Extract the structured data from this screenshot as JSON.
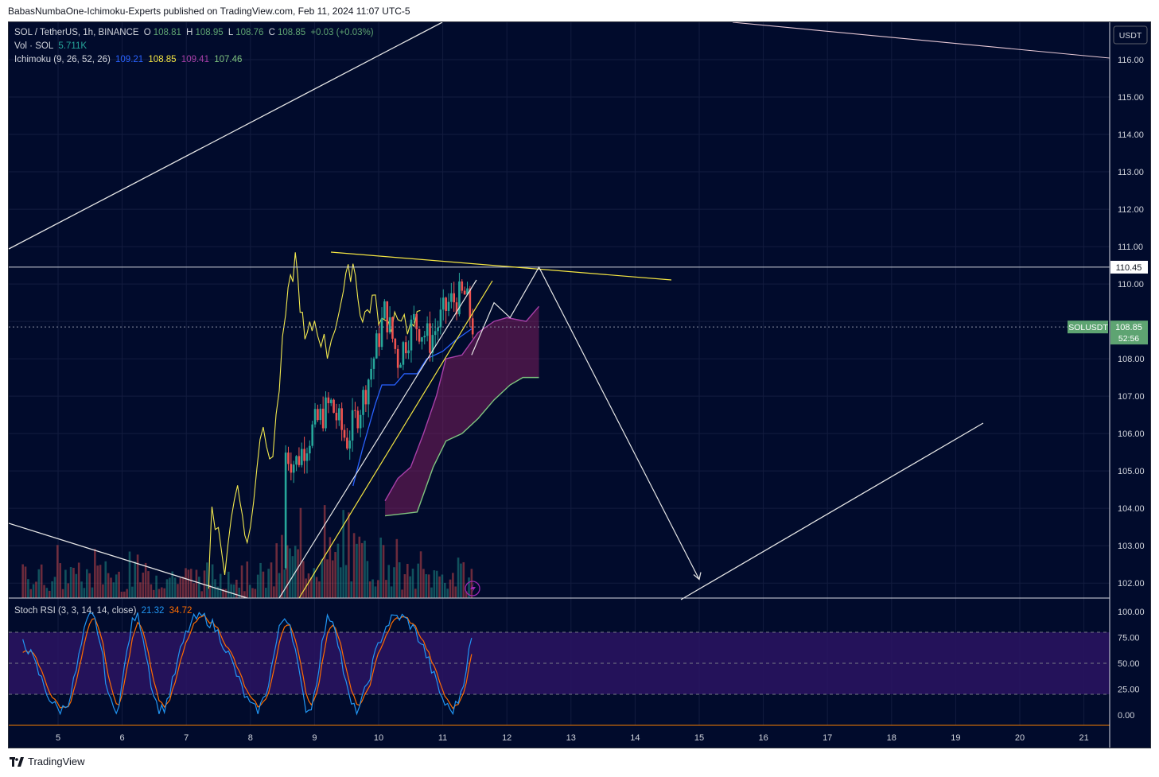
{
  "header": {
    "published": "BabasNumbaOne-Ichimoku-Experts published on TradingView.com, Feb 11, 2024 11:07 UTC-5"
  },
  "legend": {
    "symbol": "SOL / TetherUS, 1h, BINANCE",
    "o_label": "O",
    "o_value": "108.81",
    "h_label": "H",
    "h_value": "108.95",
    "l_label": "L",
    "l_value": "108.76",
    "c_label": "C",
    "c_value": "108.85",
    "change": "+0.03 (+0.03%)",
    "vol_label": "Vol · SOL",
    "vol_value": "5.711K",
    "ichimoku_label": "Ichimoku (9, 26, 52, 26)",
    "ichimoku_values": [
      "109.21",
      "108.85",
      "109.41",
      "107.46"
    ],
    "stoch_label": "Stoch RSI (3, 3, 14, 14, close)",
    "stoch_k": "21.32",
    "stoch_d": "34.72"
  },
  "price_axis": {
    "currency": "USDT",
    "ticks": [
      "116.00",
      "115.00",
      "114.00",
      "113.00",
      "112.00",
      "111.00",
      "110.00",
      "108.00",
      "107.00",
      "106.00",
      "105.00",
      "104.00",
      "103.00",
      "102.00"
    ],
    "hline_label": "110.45",
    "symbol_badge": "SOLUSDT",
    "last_price": "108.85",
    "countdown": "52:56"
  },
  "stoch_axis": {
    "ticks": [
      "100.00",
      "75.00",
      "50.00",
      "25.00",
      "0.00"
    ]
  },
  "time_axis": {
    "ticks": [
      "5",
      "6",
      "7",
      "8",
      "9",
      "10",
      "11",
      "12",
      "13",
      "14",
      "15",
      "16",
      "17",
      "18",
      "19",
      "20",
      "21"
    ]
  },
  "colors": {
    "background": "#010b2c",
    "conversion": "#f5e642",
    "base": "#2962ff",
    "lagging": "#f2e94e",
    "cloud": "#7a1f5c",
    "leading_a": "#a83fa8",
    "leading_b": "#7fc47f",
    "up": "#26a69a",
    "down": "#ef5350",
    "stoch_k": "#2196f3",
    "stoch_d": "#ff6d00",
    "stoch_band": "#2a1463",
    "badge": "#5ea472"
  },
  "chart_data": {
    "type": "candlestick",
    "title": "SOL / TetherUS, 1h, BINANCE",
    "ylim": [
      101.6,
      117.0
    ],
    "x_ticks": [
      "5",
      "6",
      "7",
      "8",
      "9",
      "10",
      "11",
      "12",
      "13",
      "14",
      "15",
      "16",
      "17",
      "18",
      "19",
      "20",
      "21"
    ],
    "y_ticks": [
      102,
      103,
      104,
      105,
      106,
      107,
      108,
      109,
      110,
      111,
      112,
      113,
      114,
      115,
      116
    ],
    "horizontal_line": 110.45,
    "last_close": 108.85,
    "ichimoku": {
      "conversion": 109.21,
      "base": 108.85,
      "lagging": 109.41,
      "leading": 107.46
    },
    "stoch_rsi": {
      "k": 21.32,
      "d": 34.72,
      "bands": [
        20,
        50,
        80
      ]
    },
    "projection": [
      {
        "day": 11.45,
        "price": 108.1
      },
      {
        "day": 11.8,
        "price": 109.5
      },
      {
        "day": 12.05,
        "price": 109.1
      },
      {
        "day": 12.5,
        "price": 110.45
      },
      {
        "day": 15.0,
        "price": 102.1
      }
    ]
  }
}
